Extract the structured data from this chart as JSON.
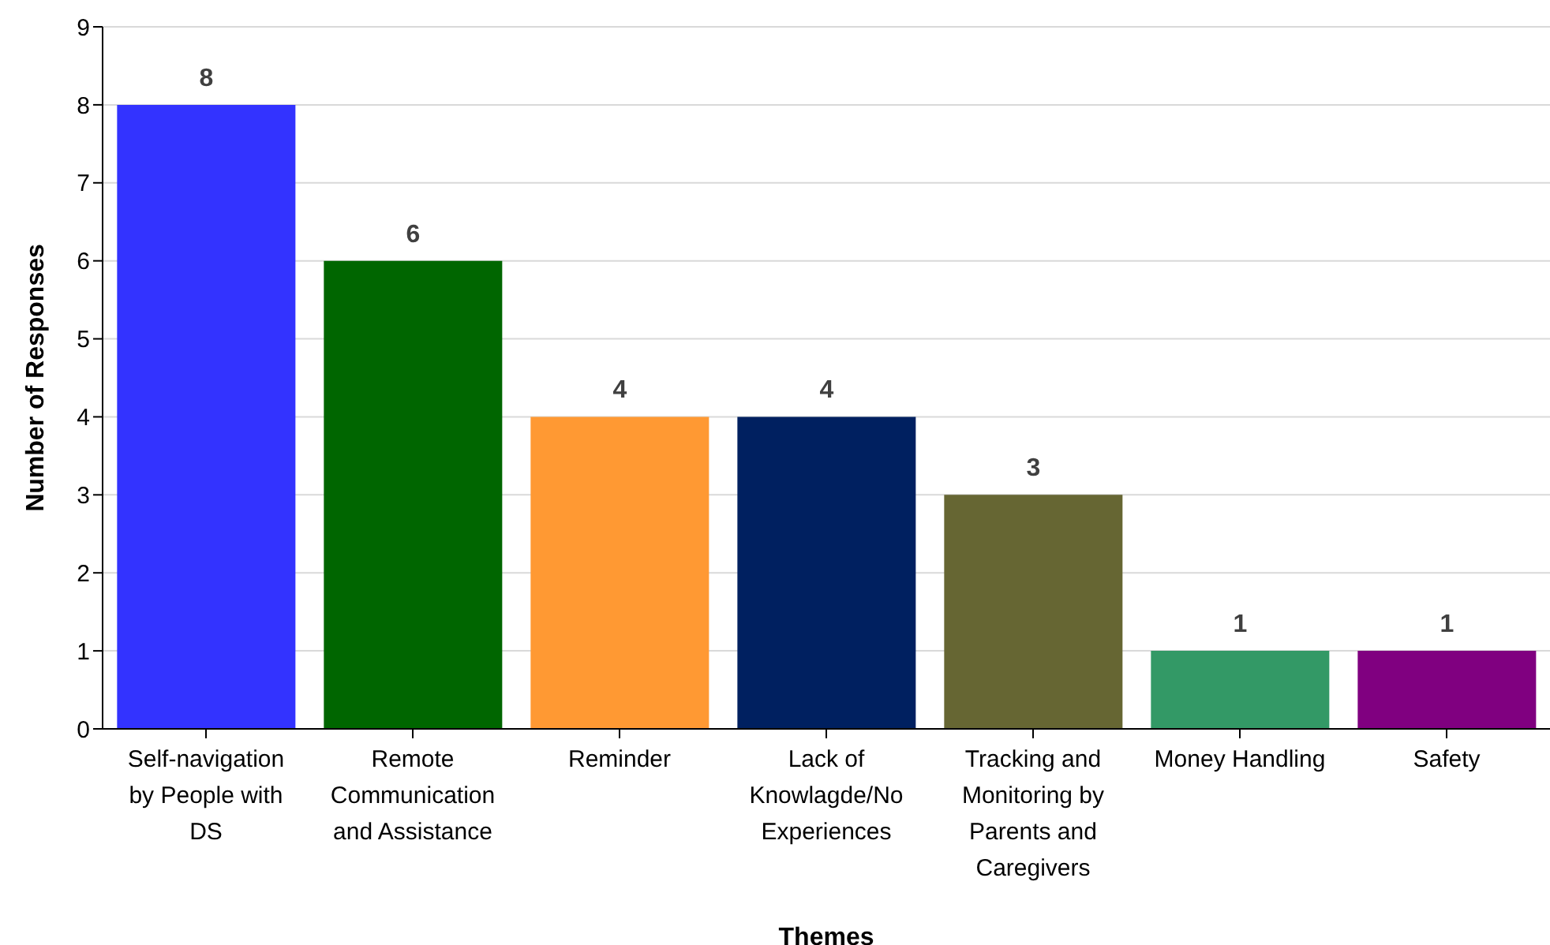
{
  "chart_data": {
    "type": "bar",
    "xlabel": "Themes",
    "ylabel": "Number of Responses",
    "categories": [
      "Self-navigation by People with DS",
      "Remote Communication and Assistance",
      "Reminder",
      "Lack of Knowlagde/No Experiences",
      "Tracking and Monitoring by Parents and Caregivers",
      "Money Handling",
      "Safety"
    ],
    "values": [
      8,
      6,
      4,
      4,
      3,
      1,
      1
    ],
    "colors": [
      "#3333ff",
      "#006600",
      "#ff9933",
      "#002060",
      "#666633",
      "#339966",
      "#800080"
    ],
    "ylim": [
      0,
      9
    ],
    "yticks": [
      0,
      1,
      2,
      3,
      4,
      5,
      6,
      7,
      8,
      9
    ],
    "grid": "y",
    "data_labels": true
  }
}
